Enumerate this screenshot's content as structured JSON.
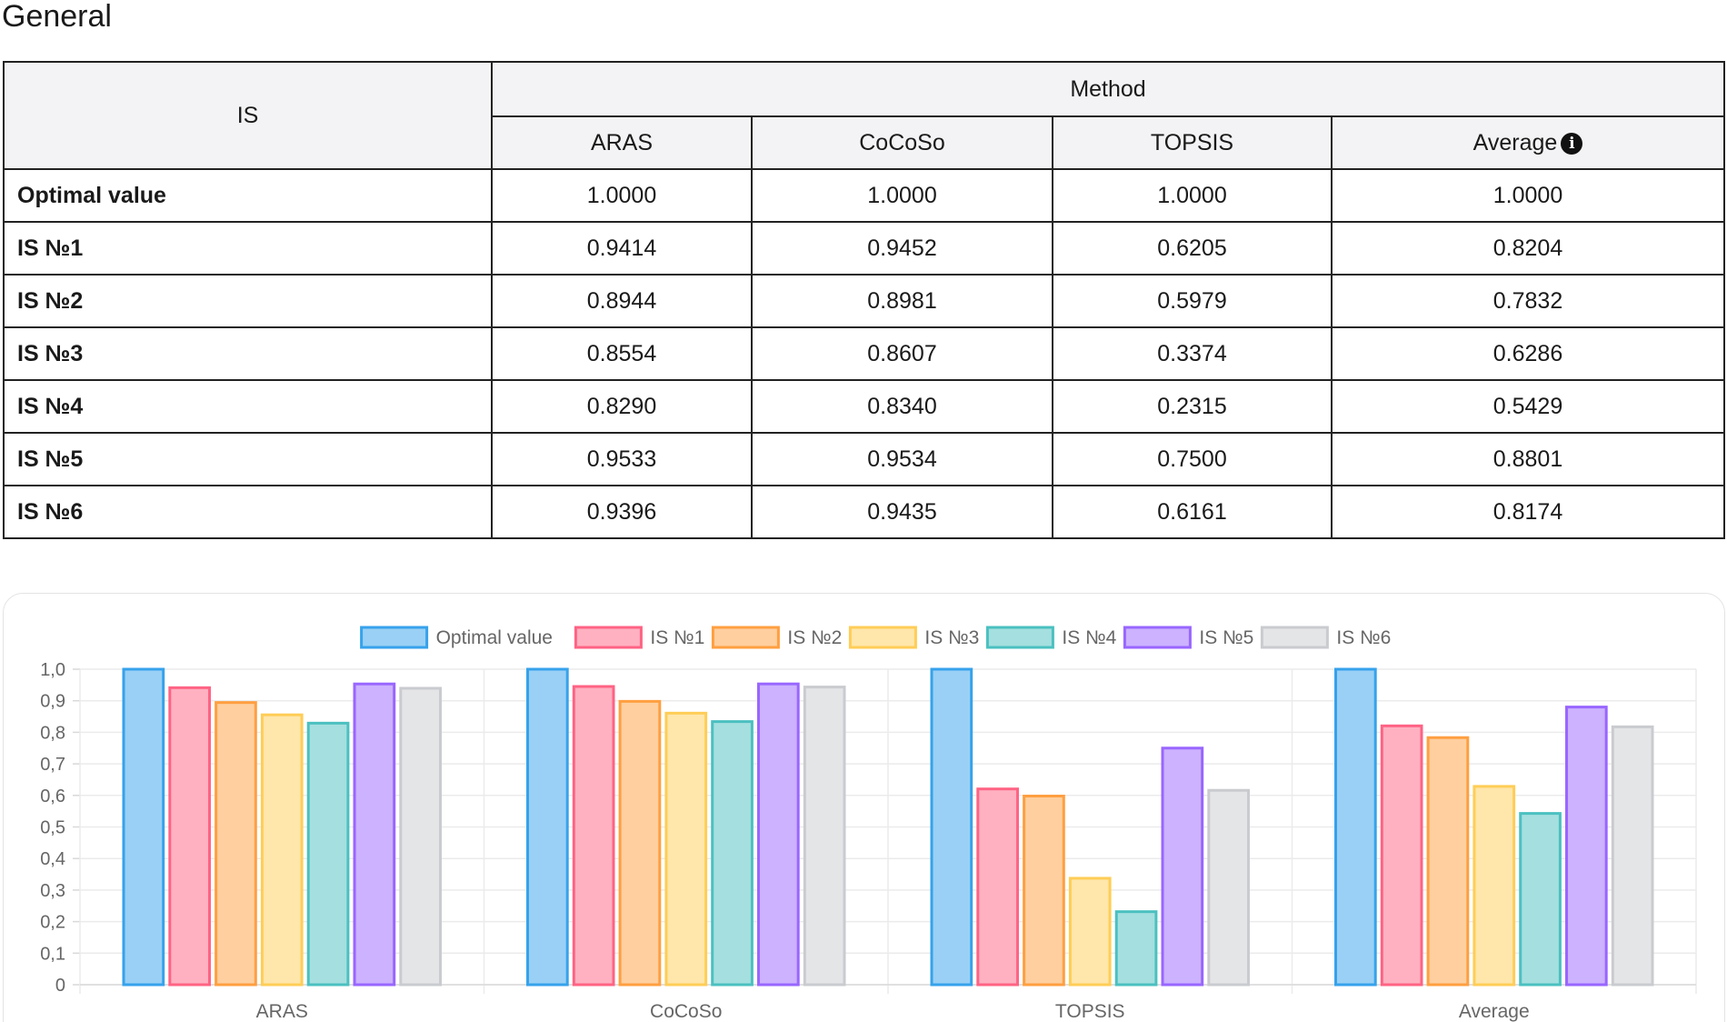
{
  "page": {
    "title": "General"
  },
  "table": {
    "row_header": "IS",
    "group_header": "Method",
    "columns": [
      "ARAS",
      "CoCoSo",
      "TOPSIS",
      "Average"
    ],
    "info_icon": "info-icon",
    "rows": [
      {
        "label": "Optimal value",
        "values": [
          "1.0000",
          "1.0000",
          "1.0000",
          "1.0000"
        ]
      },
      {
        "label": "IS №1",
        "values": [
          "0.9414",
          "0.9452",
          "0.6205",
          "0.8204"
        ]
      },
      {
        "label": "IS №2",
        "values": [
          "0.8944",
          "0.8981",
          "0.5979",
          "0.7832"
        ]
      },
      {
        "label": "IS №3",
        "values": [
          "0.8554",
          "0.8607",
          "0.3374",
          "0.6286"
        ]
      },
      {
        "label": "IS №4",
        "values": [
          "0.8290",
          "0.8340",
          "0.2315",
          "0.5429"
        ]
      },
      {
        "label": "IS №5",
        "values": [
          "0.9533",
          "0.9534",
          "0.7500",
          "0.8801"
        ]
      },
      {
        "label": "IS №6",
        "values": [
          "0.9396",
          "0.9435",
          "0.6161",
          "0.8174"
        ]
      }
    ]
  },
  "chart_data": {
    "type": "bar",
    "categories": [
      "ARAS",
      "CoCoSo",
      "TOPSIS",
      "Average"
    ],
    "ylim": [
      0,
      1
    ],
    "yticks": [
      "0",
      "0,1",
      "0,2",
      "0,3",
      "0,4",
      "0,5",
      "0,6",
      "0,7",
      "0,8",
      "0,9",
      "1,0"
    ],
    "grid": true,
    "legend_position": "top",
    "series": [
      {
        "name": "Optimal value",
        "values": [
          1.0,
          1.0,
          1.0,
          1.0
        ],
        "stroke": "#36a2eb",
        "fill": "#9ad0f5"
      },
      {
        "name": "IS №1",
        "values": [
          0.9414,
          0.9452,
          0.6205,
          0.8204
        ],
        "stroke": "#ff6384",
        "fill": "#ffb1c1"
      },
      {
        "name": "IS №2",
        "values": [
          0.8944,
          0.8981,
          0.5979,
          0.7832
        ],
        "stroke": "#ff9f40",
        "fill": "#ffcf9f"
      },
      {
        "name": "IS №3",
        "values": [
          0.8554,
          0.8607,
          0.3374,
          0.6286
        ],
        "stroke": "#ffcd56",
        "fill": "#ffe6aa"
      },
      {
        "name": "IS №4",
        "values": [
          0.829,
          0.834,
          0.2315,
          0.5429
        ],
        "stroke": "#4bc0c0",
        "fill": "#a5dfdf"
      },
      {
        "name": "IS №5",
        "values": [
          0.9533,
          0.9534,
          0.75,
          0.8801
        ],
        "stroke": "#9966ff",
        "fill": "#ccb2ff"
      },
      {
        "name": "IS №6",
        "values": [
          0.9396,
          0.9435,
          0.6161,
          0.8174
        ],
        "stroke": "#c9cbcf",
        "fill": "#e4e5e7"
      }
    ]
  }
}
